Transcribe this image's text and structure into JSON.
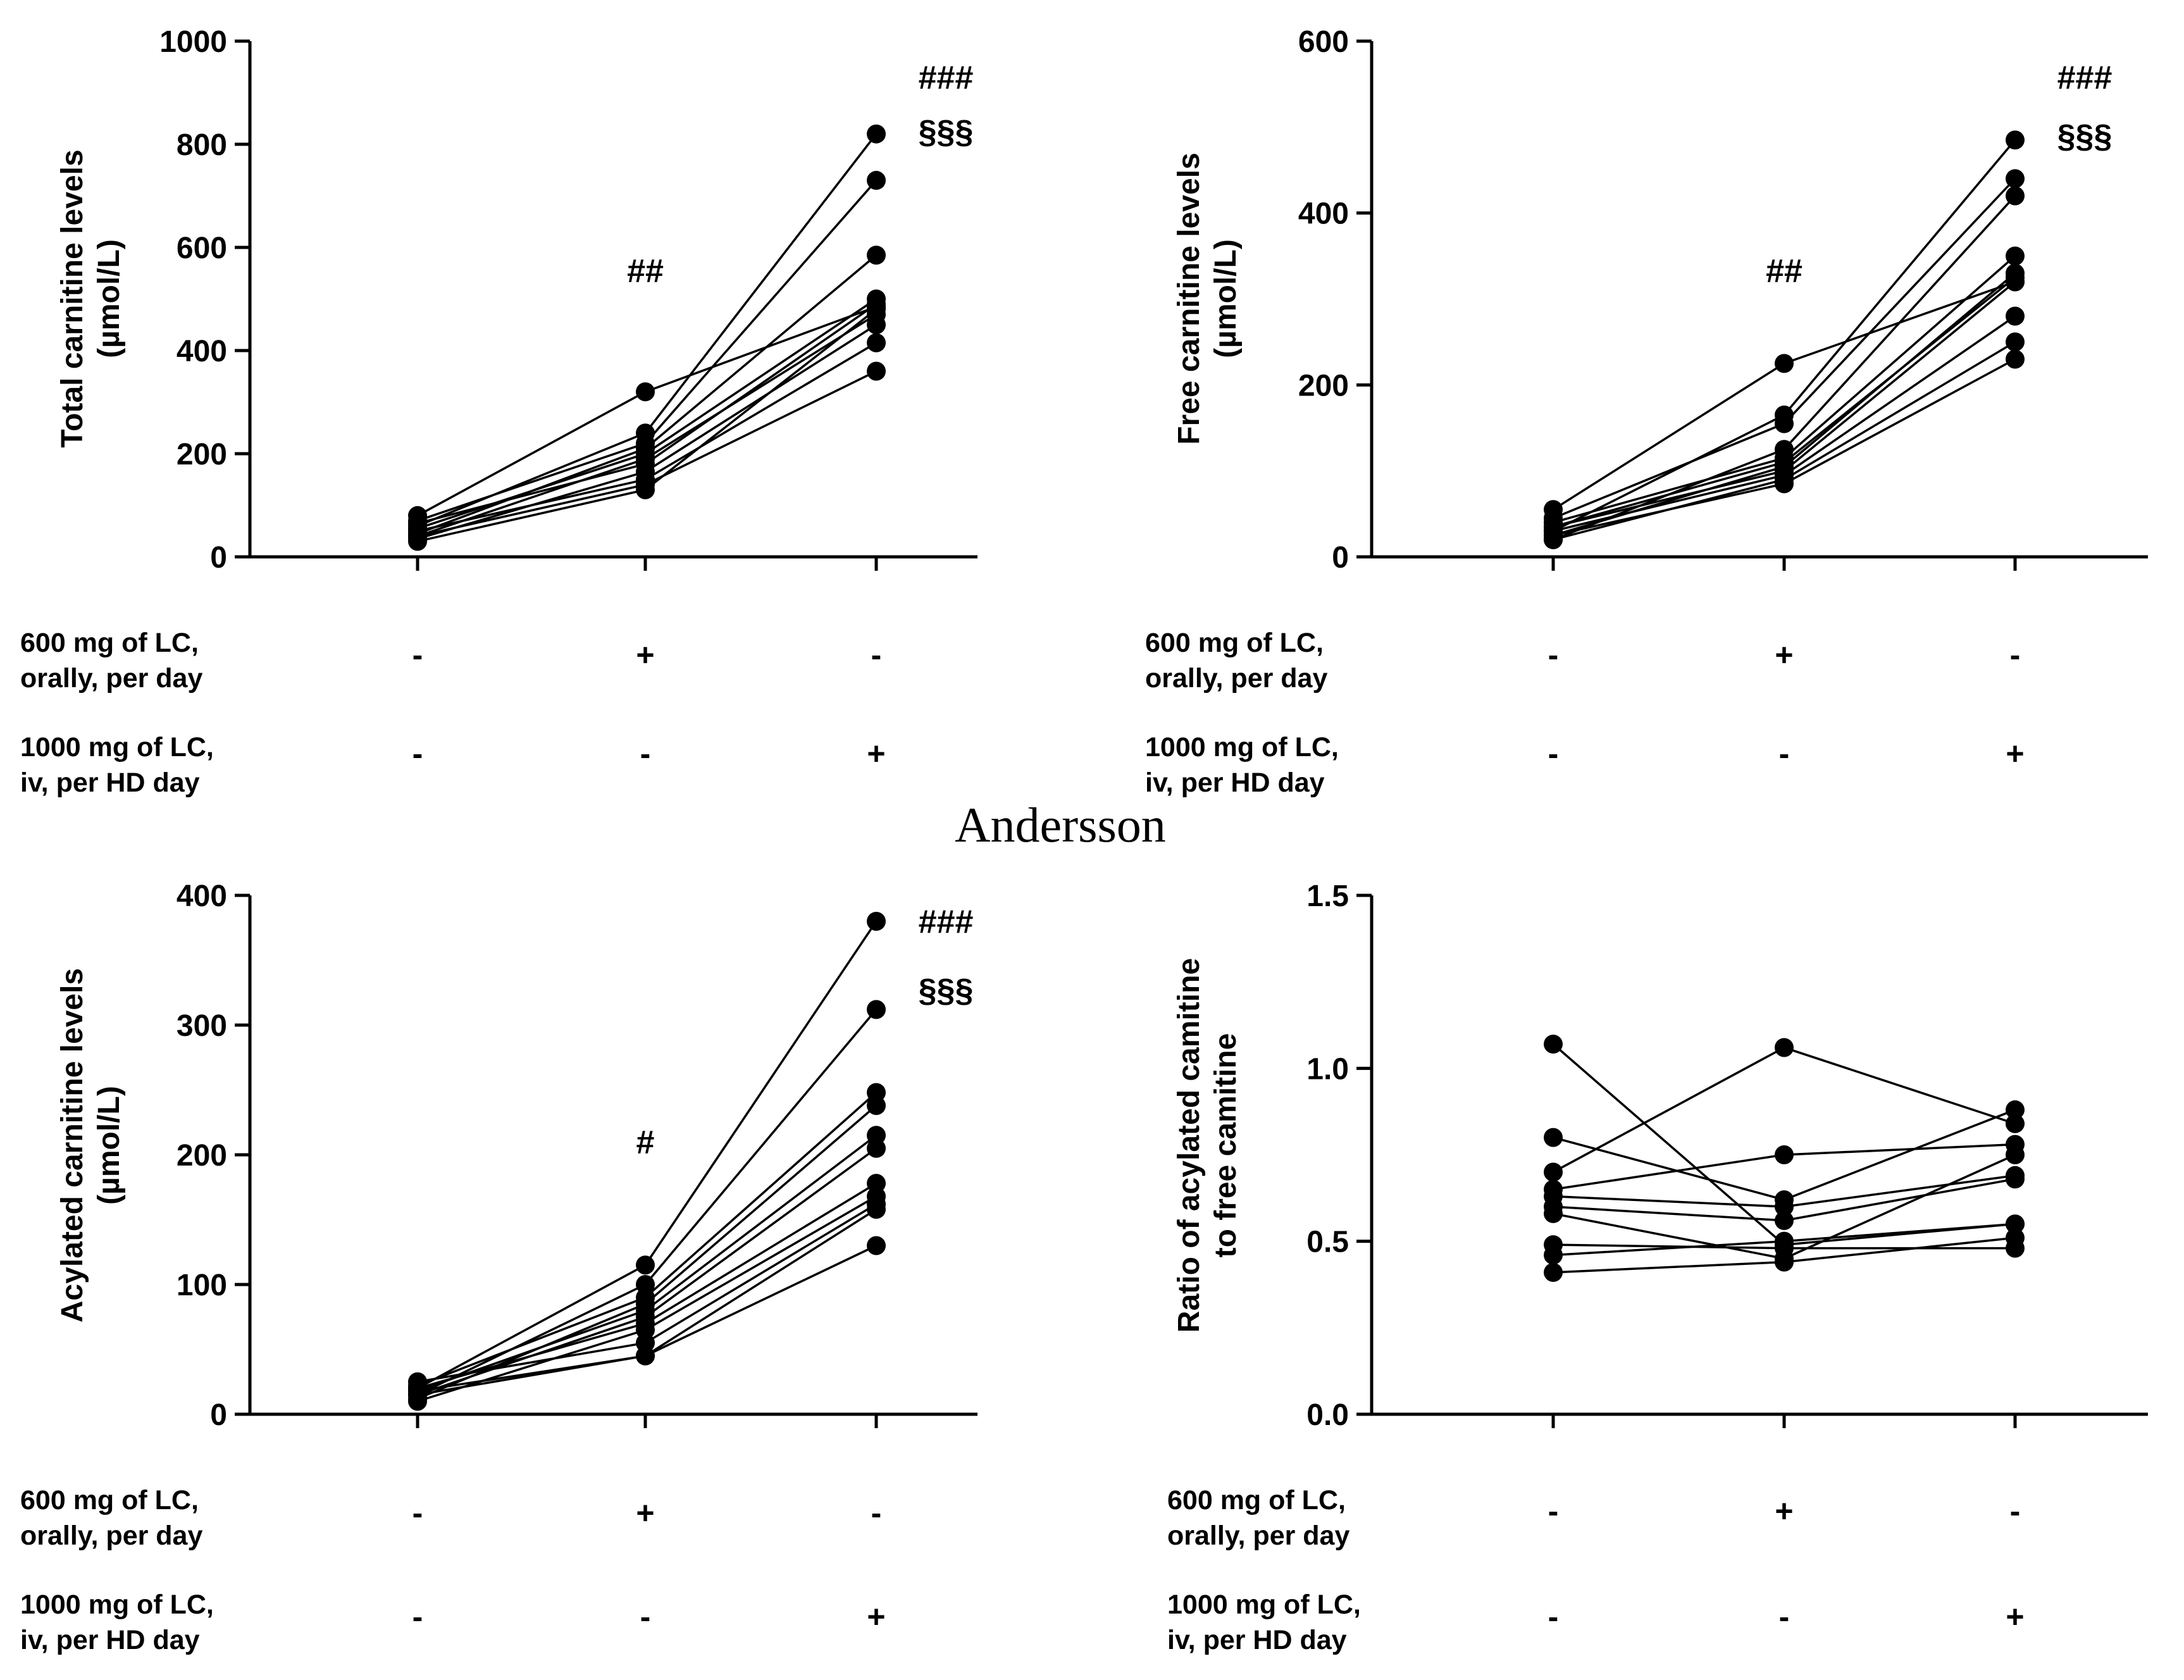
{
  "watermark": "Andersson",
  "treatments": [
    {
      "lines": [
        "600 mg of LC,",
        "orally, per day"
      ],
      "symbols": [
        "-",
        "+",
        "-"
      ]
    },
    {
      "lines": [
        "1000 mg of LC,",
        "iv, per HD day"
      ],
      "symbols": [
        "-",
        "-",
        "+"
      ]
    }
  ],
  "chart_data": [
    {
      "type": "line",
      "ylabel": [
        "Total carnitine levels",
        "(µmol/L)"
      ],
      "ylim": [
        0,
        1000
      ],
      "yticks": [
        0,
        200,
        400,
        600,
        800,
        1000
      ],
      "yticklabels": [
        "0",
        "200",
        "400",
        "600",
        "800",
        "1000"
      ],
      "annotations": [
        {
          "text": "##",
          "group": 1,
          "y": 555
        },
        {
          "text": "###",
          "group": 2,
          "y": 930
        },
        {
          "text": "§§§",
          "group": 2,
          "y": 825
        }
      ],
      "series": [
        {
          "values": [
            80,
            320,
            485
          ]
        },
        {
          "values": [
            60,
            240,
            820
          ]
        },
        {
          "values": [
            70,
            220,
            730
          ]
        },
        {
          "values": [
            45,
            210,
            585
          ]
        },
        {
          "values": [
            55,
            200,
            500
          ]
        },
        {
          "values": [
            40,
            190,
            470
          ]
        },
        {
          "values": [
            65,
            180,
            490
          ]
        },
        {
          "values": [
            35,
            165,
            450
          ]
        },
        {
          "values": [
            50,
            150,
            415
          ]
        },
        {
          "values": [
            40,
            140,
            360
          ]
        },
        {
          "values": [
            30,
            130,
            480
          ]
        }
      ]
    },
    {
      "type": "line",
      "ylabel": [
        "Free carnitine levels",
        "(µmol/L)"
      ],
      "ylim": [
        0,
        600
      ],
      "yticks": [
        0,
        200,
        400,
        600
      ],
      "yticklabels": [
        "0",
        "200",
        "400",
        "600"
      ],
      "annotations": [
        {
          "text": "##",
          "group": 1,
          "y": 333
        },
        {
          "text": "###",
          "group": 2,
          "y": 558
        },
        {
          "text": "§§§",
          "group": 2,
          "y": 490
        }
      ],
      "series": [
        {
          "values": [
            55,
            225,
            320
          ]
        },
        {
          "values": [
            30,
            165,
            485
          ]
        },
        {
          "values": [
            45,
            155,
            440
          ]
        },
        {
          "values": [
            20,
            125,
            420
          ]
        },
        {
          "values": [
            40,
            115,
            350
          ]
        },
        {
          "values": [
            25,
            105,
            330
          ]
        },
        {
          "values": [
            35,
            100,
            320
          ]
        },
        {
          "values": [
            30,
            95,
            280
          ]
        },
        {
          "values": [
            20,
            90,
            250
          ]
        },
        {
          "values": [
            25,
            85,
            230
          ]
        },
        {
          "values": [
            35,
            110,
            325
          ]
        }
      ]
    },
    {
      "type": "line",
      "ylabel": [
        "Acylated carnitine levels",
        "(µmol/L)"
      ],
      "ylim": [
        0,
        400
      ],
      "yticks": [
        0,
        100,
        200,
        300,
        400
      ],
      "yticklabels": [
        "0",
        "100",
        "200",
        "300",
        "400"
      ],
      "annotations": [
        {
          "text": "#",
          "group": 1,
          "y": 210
        },
        {
          "text": "###",
          "group": 2,
          "y": 380
        },
        {
          "text": "§§§",
          "group": 2,
          "y": 327
        }
      ],
      "series": [
        {
          "values": [
            20,
            115,
            380
          ]
        },
        {
          "values": [
            15,
            100,
            312
          ]
        },
        {
          "values": [
            22,
            90,
            248
          ]
        },
        {
          "values": [
            12,
            85,
            238
          ]
        },
        {
          "values": [
            18,
            80,
            215
          ]
        },
        {
          "values": [
            15,
            75,
            205
          ]
        },
        {
          "values": [
            20,
            70,
            178
          ]
        },
        {
          "values": [
            10,
            65,
            168
          ]
        },
        {
          "values": [
            25,
            55,
            162
          ]
        },
        {
          "values": [
            15,
            45,
            158
          ]
        },
        {
          "values": [
            18,
            45,
            130
          ]
        }
      ]
    },
    {
      "type": "line",
      "ylabel": [
        "Ratio of acylated camitine",
        "to free camitine"
      ],
      "ylim": [
        0,
        1.5
      ],
      "yticks": [
        0,
        0.5,
        1.0,
        1.5
      ],
      "yticklabels": [
        "0.0",
        "0.5",
        "1.0",
        "1.5"
      ],
      "annotations": [],
      "series": [
        {
          "values": [
            1.07,
            0.49,
            0.55
          ]
        },
        {
          "values": [
            0.8,
            0.62,
            0.88
          ]
        },
        {
          "values": [
            0.7,
            1.06,
            0.84
          ]
        },
        {
          "values": [
            0.65,
            0.75,
            0.78
          ]
        },
        {
          "values": [
            0.63,
            0.6,
            0.69
          ]
        },
        {
          "values": [
            0.6,
            0.56,
            0.68
          ]
        },
        {
          "values": [
            0.58,
            0.45,
            0.75
          ]
        },
        {
          "values": [
            0.49,
            0.48,
            0.48
          ]
        },
        {
          "values": [
            0.46,
            0.5,
            0.55
          ]
        },
        {
          "values": [
            0.41,
            0.44,
            0.51
          ]
        }
      ]
    }
  ]
}
